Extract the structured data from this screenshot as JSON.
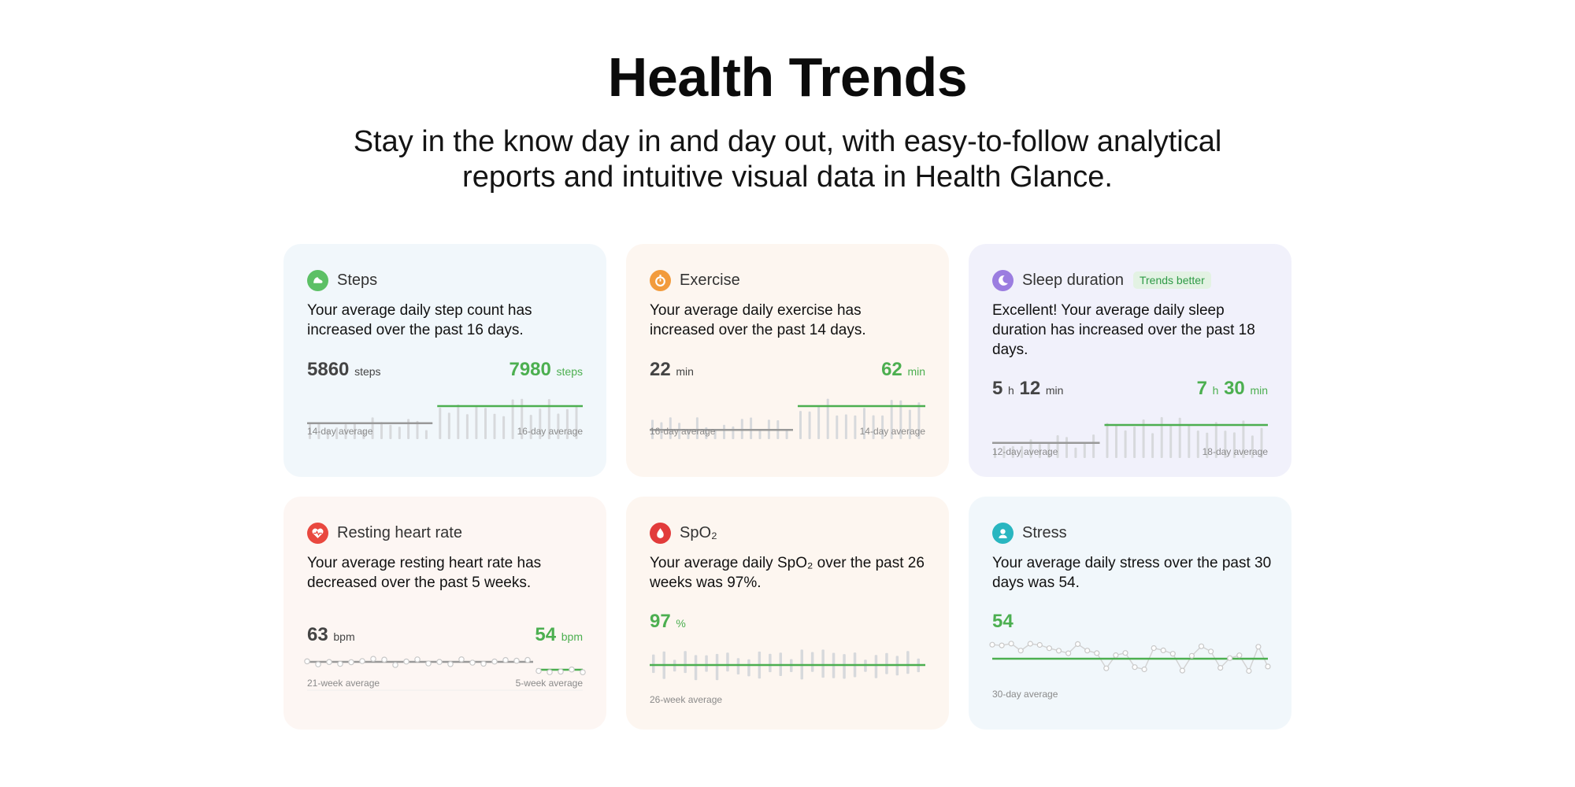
{
  "page": {
    "title": "Health Trends",
    "subtitle": "Stay in the know day in and day out, with easy-to-follow analytical reports and intuitive visual data in Health Glance."
  },
  "colors": {
    "accent_green": "#4caf50",
    "grey_line": "#999999",
    "bar_grey": "#d7d9dc"
  },
  "cards": [
    {
      "id": "steps",
      "title": "Steps",
      "icon": "shoe-icon",
      "icon_color": "#5cc065",
      "description": "Your average daily step count has increased over the past 16 days.",
      "prev_value": "5860",
      "prev_unit": "steps",
      "curr_value": "7980",
      "curr_unit": "steps",
      "prev_label": "14-day average",
      "curr_label": "16-day average",
      "prev_days": 14,
      "curr_days": 16,
      "prev_avg": 5860,
      "curr_avg": 7980
    },
    {
      "id": "exercise",
      "title": "Exercise",
      "icon": "stopwatch-icon",
      "icon_color": "#f29b3c",
      "description": "Your average daily exercise has increased over the past 14 days.",
      "prev_value": "22",
      "prev_unit": "min",
      "curr_value": "62",
      "curr_unit": "min",
      "prev_label": "16-day average",
      "curr_label": "14-day average",
      "prev_days": 16,
      "curr_days": 14,
      "prev_avg": 22,
      "curr_avg": 62
    },
    {
      "id": "sleep",
      "title": "Sleep duration",
      "icon": "moon-icon",
      "icon_color": "#9b7de0",
      "badge": "Trends better",
      "description": "Excellent!  Your average daily sleep duration has increased over the past 18 days.",
      "prev_h": "5",
      "prev_m": "12",
      "curr_h": "7",
      "curr_m": "30",
      "unit_h": "h",
      "unit_m": "min",
      "prev_label": "12-day average",
      "curr_label": "18-day average",
      "prev_days": 12,
      "curr_days": 18,
      "prev_avg": 312,
      "curr_avg": 450
    },
    {
      "id": "heart",
      "title": "Resting heart rate",
      "icon": "heart-icon",
      "icon_color": "#e9483f",
      "description": "Your average resting heart rate has decreased over the past 5 weeks.",
      "prev_value": "63",
      "prev_unit": "bpm",
      "curr_value": "54",
      "curr_unit": "bpm",
      "prev_label": "21-week average",
      "curr_label": "5-week average",
      "prev_weeks": 21,
      "curr_weeks": 5,
      "prev_avg": 63,
      "curr_avg": 54
    },
    {
      "id": "spo2",
      "title": "SpO₂",
      "icon": "blood-drop-icon",
      "icon_color": "#e23b3b",
      "description": "Your average daily SpO₂ over the past 26 weeks was 97%.",
      "value": "97",
      "unit": "%",
      "label": "26-week average",
      "weeks": 26,
      "avg": 97
    },
    {
      "id": "stress",
      "title": "Stress",
      "icon": "person-icon",
      "icon_color": "#29b6c0",
      "description": "Your average daily stress over the past 30 days was 54.",
      "value": "54",
      "label": "30-day average",
      "days": 30,
      "avg": 54
    }
  ]
}
